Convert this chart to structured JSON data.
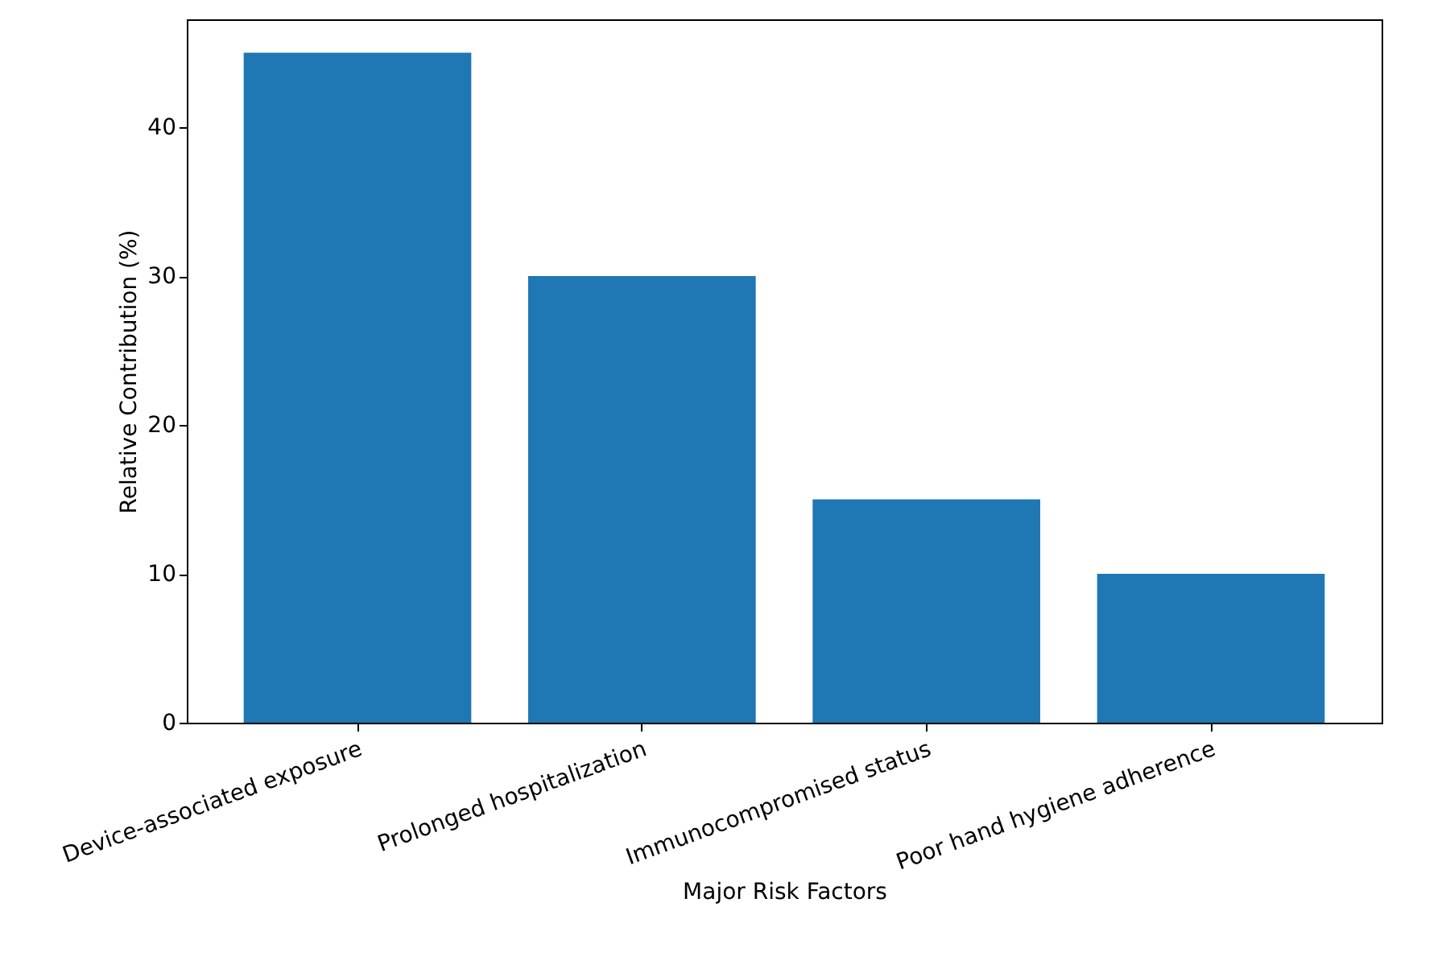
{
  "chart_data": {
    "type": "bar",
    "xlabel": "Major Risk Factors",
    "ylabel": "Relative Contribution (%)",
    "categories": [
      "Device-associated exposure",
      "Prolonged hospitalization",
      "Immunocompromised status",
      "Poor hand hygiene adherence"
    ],
    "values": [
      45,
      30,
      15,
      10
    ],
    "color": "#1f77b4",
    "ylim": [
      0,
      47.25
    ],
    "yticks": [
      0,
      10,
      20,
      30,
      40
    ],
    "grid": false
  }
}
